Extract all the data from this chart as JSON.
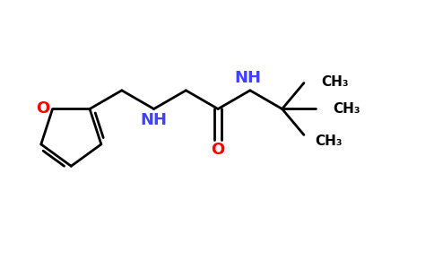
{
  "background_color": "#ffffff",
  "bond_color": "#000000",
  "nitrogen_color": "#4040ff",
  "oxygen_color": "#ff0000",
  "line_width": 2.0,
  "font_size": 13,
  "font_size_small": 11,
  "fig_width": 4.84,
  "fig_height": 3.0,
  "dpi": 100,
  "xlim": [
    0,
    9.5
  ],
  "ylim": [
    0,
    5.5
  ]
}
